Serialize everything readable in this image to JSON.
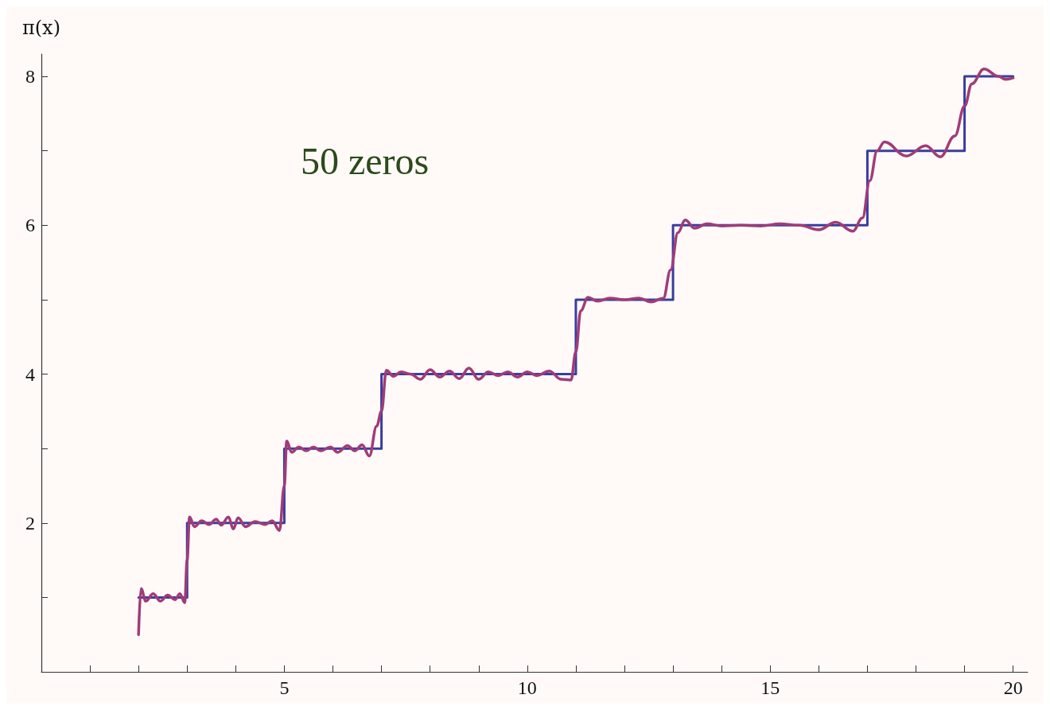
{
  "chart_data": {
    "type": "line",
    "ylabel": "π(x)",
    "annotations": [
      "50 zeros"
    ],
    "xlim": [
      0,
      20.3
    ],
    "ylim": [
      0,
      8.3
    ],
    "xticks": [
      {
        "value": 1,
        "label": null
      },
      {
        "value": 2,
        "label": null
      },
      {
        "value": 3,
        "label": null
      },
      {
        "value": 4,
        "label": null
      },
      5,
      {
        "value": 6,
        "label": null
      },
      {
        "value": 7,
        "label": null
      },
      {
        "value": 8,
        "label": null
      },
      {
        "value": 9,
        "label": null
      },
      10,
      {
        "value": 11,
        "label": null
      },
      {
        "value": 12,
        "label": null
      },
      {
        "value": 13,
        "label": null
      },
      {
        "value": 14,
        "label": null
      },
      15,
      {
        "value": 16,
        "label": null
      },
      {
        "value": 17,
        "label": null
      },
      {
        "value": 18,
        "label": null
      },
      {
        "value": 19,
        "label": null
      },
      20
    ],
    "yticks": [
      {
        "value": 1,
        "label": null
      },
      2,
      {
        "value": 3,
        "label": null
      },
      4,
      {
        "value": 5,
        "label": null
      },
      6,
      {
        "value": 7,
        "label": null
      },
      8
    ],
    "grid": false,
    "marker": "none",
    "series": [
      {
        "type": "step",
        "color": "#3b3ba0",
        "x": [
          2,
          3,
          5,
          7,
          11,
          13,
          17,
          19,
          20
        ],
        "values": [
          1,
          2,
          3,
          4,
          5,
          6,
          7,
          8,
          8
        ]
      },
      {
        "color": "#a03c78",
        "x": [
          2,
          2.05,
          2.15,
          2.3,
          2.45,
          2.6,
          2.75,
          2.85,
          2.95,
          3,
          3.05,
          3.15,
          3.3,
          3.45,
          3.6,
          3.7,
          3.85,
          3.95,
          4.05,
          4.2,
          4.4,
          4.6,
          4.75,
          4.9,
          5,
          5.05,
          5.15,
          5.3,
          5.45,
          5.6,
          5.75,
          5.95,
          6.1,
          6.3,
          6.45,
          6.6,
          6.75,
          6.9,
          7,
          7.1,
          7.25,
          7.4,
          7.6,
          7.8,
          8,
          8.2,
          8.4,
          8.6,
          8.8,
          9,
          9.2,
          9.4,
          9.6,
          9.8,
          10,
          10.2,
          10.45,
          10.7,
          10.9,
          11,
          11.1,
          11.25,
          11.45,
          11.7,
          12,
          12.3,
          12.55,
          12.8,
          12.95,
          13.1,
          13.25,
          13.45,
          13.7,
          14,
          14.4,
          14.8,
          15.2,
          15.6,
          16,
          16.35,
          16.7,
          16.9,
          17.05,
          17.2,
          17.35,
          17.8,
          18.2,
          18.5,
          18.8,
          19,
          19.15,
          19.4,
          19.7,
          19.85,
          20
        ],
        "values": [
          0.5,
          1.12,
          0.95,
          1.05,
          0.95,
          1.03,
          0.97,
          1.05,
          0.93,
          1.5,
          2.08,
          1.95,
          2.03,
          1.98,
          2.05,
          1.97,
          2.08,
          1.92,
          2.07,
          1.95,
          2.02,
          1.98,
          2.03,
          1.9,
          2.5,
          3.1,
          2.95,
          3.02,
          2.97,
          3.02,
          2.97,
          3.02,
          2.95,
          3.04,
          2.97,
          3.05,
          2.9,
          3.3,
          3.5,
          4.05,
          3.97,
          4.03,
          4,
          3.93,
          4.06,
          3.96,
          4.04,
          3.94,
          4.08,
          3.93,
          4.03,
          3.98,
          4.03,
          3.96,
          4.03,
          3.98,
          4.04,
          3.93,
          3.92,
          4.3,
          4.85,
          5.03,
          4.98,
          5.02,
          5,
          5.02,
          4.97,
          5.02,
          5.4,
          5.9,
          6.07,
          5.96,
          6.02,
          5.99,
          6,
          5.99,
          6.02,
          6,
          5.94,
          6.04,
          5.92,
          6.1,
          6.6,
          7,
          7.12,
          6.93,
          7.07,
          6.92,
          7.2,
          7.6,
          7.9,
          8.1,
          8,
          7.96,
          7.98
        ]
      }
    ]
  }
}
